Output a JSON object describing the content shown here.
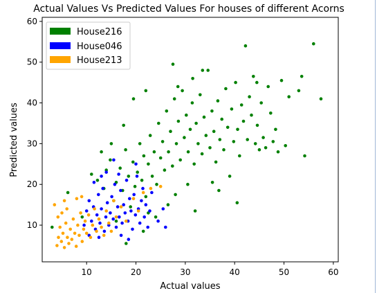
{
  "chart_data": {
    "type": "scatter",
    "title": "Actual Values Vs Predicted Values For houses of different Acorns",
    "xlabel": "Actual values",
    "ylabel": "Predicted values",
    "xlim": [
      1,
      61
    ],
    "ylim": [
      1,
      61
    ],
    "xticks": [
      10,
      20,
      30,
      40,
      50,
      60
    ],
    "yticks": [
      10,
      20,
      30,
      40,
      50,
      60
    ],
    "grid": false,
    "legend_position": "top-left",
    "series": [
      {
        "name": "House216",
        "color": "#008000",
        "points": [
          [
            3.0,
            9.5
          ],
          [
            6.2,
            18.0
          ],
          [
            9.1,
            12.0
          ],
          [
            11.0,
            22.5
          ],
          [
            12.2,
            21.0
          ],
          [
            13.5,
            19.0
          ],
          [
            14.0,
            23.5
          ],
          [
            14.8,
            26.0
          ],
          [
            15.5,
            16.0
          ],
          [
            16.0,
            20.5
          ],
          [
            16.8,
            24.0
          ],
          [
            17.3,
            18.5
          ],
          [
            17.9,
            28.5
          ],
          [
            18.5,
            22.0
          ],
          [
            18.9,
            14.5
          ],
          [
            19.4,
            25.5
          ],
          [
            19.8,
            19.5
          ],
          [
            20.3,
            23.0
          ],
          [
            20.8,
            30.0
          ],
          [
            21.2,
            21.0
          ],
          [
            21.6,
            27.0
          ],
          [
            22.0,
            17.0
          ],
          [
            22.5,
            25.0
          ],
          [
            22.9,
            32.0
          ],
          [
            23.3,
            22.0
          ],
          [
            23.7,
            28.0
          ],
          [
            24.2,
            20.0
          ],
          [
            24.6,
            35.0
          ],
          [
            25.0,
            26.5
          ],
          [
            25.4,
            30.5
          ],
          [
            25.8,
            23.5
          ],
          [
            26.2,
            38.0
          ],
          [
            26.6,
            28.0
          ],
          [
            27.0,
            33.0
          ],
          [
            27.4,
            24.5
          ],
          [
            27.8,
            41.0
          ],
          [
            28.2,
            30.0
          ],
          [
            28.6,
            35.5
          ],
          [
            29.0,
            26.0
          ],
          [
            29.4,
            43.0
          ],
          [
            29.8,
            31.5
          ],
          [
            30.2,
            37.0
          ],
          [
            30.6,
            28.0
          ],
          [
            31.0,
            33.5
          ],
          [
            31.4,
            40.0
          ],
          [
            31.8,
            25.0
          ],
          [
            32.2,
            35.0
          ],
          [
            32.6,
            30.0
          ],
          [
            33.0,
            42.0
          ],
          [
            33.4,
            27.5
          ],
          [
            33.8,
            36.5
          ],
          [
            34.2,
            32.0
          ],
          [
            34.6,
            48.0
          ],
          [
            35.0,
            29.0
          ],
          [
            35.4,
            38.0
          ],
          [
            35.8,
            33.0
          ],
          [
            36.2,
            25.5
          ],
          [
            36.6,
            40.5
          ],
          [
            37.0,
            31.0
          ],
          [
            37.4,
            36.0
          ],
          [
            37.8,
            28.5
          ],
          [
            38.2,
            43.5
          ],
          [
            38.6,
            34.0
          ],
          [
            39.0,
            22.0
          ],
          [
            39.4,
            38.5
          ],
          [
            39.8,
            30.5
          ],
          [
            40.2,
            45.0
          ],
          [
            40.6,
            33.5
          ],
          [
            41.0,
            27.0
          ],
          [
            41.4,
            39.5
          ],
          [
            41.8,
            35.5
          ],
          [
            42.2,
            54.0
          ],
          [
            42.6,
            31.0
          ],
          [
            43.0,
            41.5
          ],
          [
            43.4,
            37.0
          ],
          [
            43.8,
            46.5
          ],
          [
            44.2,
            30.0
          ],
          [
            44.6,
            34.5
          ],
          [
            45.0,
            28.5
          ],
          [
            45.4,
            40.0
          ],
          [
            45.8,
            31.5
          ],
          [
            46.3,
            29.0
          ],
          [
            46.8,
            44.0
          ],
          [
            47.3,
            37.5
          ],
          [
            47.8,
            30.5
          ],
          [
            48.3,
            33.5
          ],
          [
            48.8,
            28.0
          ],
          [
            49.5,
            45.5
          ],
          [
            50.3,
            29.5
          ],
          [
            51.0,
            41.5
          ],
          [
            53.0,
            43.0
          ],
          [
            53.6,
            46.5
          ],
          [
            54.2,
            27.0
          ],
          [
            56.0,
            54.5
          ],
          [
            57.5,
            41.0
          ],
          [
            16.0,
            11.0
          ],
          [
            18.0,
            5.5
          ],
          [
            21.5,
            8.5
          ],
          [
            22.5,
            13.0
          ],
          [
            24.0,
            12.0
          ],
          [
            26.5,
            15.0
          ],
          [
            28.0,
            17.5
          ],
          [
            30.5,
            20.0
          ],
          [
            32.0,
            13.5
          ],
          [
            35.5,
            20.5
          ],
          [
            40.5,
            15.5
          ],
          [
            36.8,
            18.5
          ],
          [
            27.5,
            49.5
          ],
          [
            31.5,
            46.0
          ],
          [
            33.5,
            48.0
          ],
          [
            44.5,
            45.0
          ],
          [
            28.5,
            44.0
          ],
          [
            22.0,
            43.0
          ],
          [
            19.5,
            41.0
          ],
          [
            17.5,
            34.5
          ],
          [
            15.0,
            30.0
          ],
          [
            13.0,
            28.0
          ]
        ]
      },
      {
        "name": "House046",
        "color": "#0000ff",
        "points": [
          [
            9.5,
            10.0
          ],
          [
            10.0,
            13.5
          ],
          [
            10.5,
            16.0
          ],
          [
            11.0,
            11.0
          ],
          [
            11.4,
            14.5
          ],
          [
            11.8,
            9.0
          ],
          [
            12.1,
            12.5
          ],
          [
            12.4,
            17.5
          ],
          [
            12.7,
            10.5
          ],
          [
            13.0,
            14.0
          ],
          [
            13.3,
            19.0
          ],
          [
            13.6,
            8.5
          ],
          [
            13.9,
            12.0
          ],
          [
            14.2,
            15.5
          ],
          [
            14.5,
            10.0
          ],
          [
            14.8,
            13.0
          ],
          [
            15.1,
            17.0
          ],
          [
            15.4,
            11.5
          ],
          [
            15.7,
            20.0
          ],
          [
            16.0,
            9.5
          ],
          [
            16.3,
            14.5
          ],
          [
            16.6,
            12.0
          ],
          [
            16.9,
            18.5
          ],
          [
            17.2,
            10.5
          ],
          [
            17.5,
            15.0
          ],
          [
            17.8,
            13.0
          ],
          [
            18.1,
            21.0
          ],
          [
            18.4,
            11.0
          ],
          [
            18.7,
            16.5
          ],
          [
            19.0,
            13.5
          ],
          [
            19.3,
            9.0
          ],
          [
            19.6,
            17.5
          ],
          [
            19.9,
            12.5
          ],
          [
            20.2,
            22.0
          ],
          [
            20.5,
            14.0
          ],
          [
            20.8,
            10.5
          ],
          [
            21.1,
            16.0
          ],
          [
            21.4,
            19.0
          ],
          [
            21.7,
            12.0
          ],
          [
            22.0,
            15.0
          ],
          [
            22.4,
            9.5
          ],
          [
            22.8,
            13.5
          ],
          [
            23.2,
            18.0
          ],
          [
            14.0,
            23.0
          ],
          [
            15.5,
            26.0
          ],
          [
            16.5,
            22.5
          ],
          [
            20.0,
            25.0
          ],
          [
            11.5,
            20.5
          ],
          [
            10.5,
            7.5
          ],
          [
            12.5,
            7.0
          ],
          [
            17.0,
            7.5
          ],
          [
            18.5,
            6.5
          ],
          [
            24.5,
            11.0
          ],
          [
            25.5,
            14.0
          ],
          [
            26.0,
            9.5
          ],
          [
            13.0,
            22.0
          ]
        ]
      },
      {
        "name": "House213",
        "color": "#ffa500",
        "points": [
          [
            4.0,
            5.0
          ],
          [
            4.3,
            7.0
          ],
          [
            4.6,
            9.5
          ],
          [
            4.9,
            6.0
          ],
          [
            5.2,
            8.0
          ],
          [
            5.5,
            4.5
          ],
          [
            5.8,
            10.5
          ],
          [
            6.1,
            7.0
          ],
          [
            6.4,
            5.5
          ],
          [
            6.7,
            9.0
          ],
          [
            7.0,
            6.5
          ],
          [
            7.3,
            11.5
          ],
          [
            7.6,
            8.0
          ],
          [
            7.9,
            4.8
          ],
          [
            8.2,
            10.0
          ],
          [
            8.5,
            7.5
          ],
          [
            8.8,
            13.0
          ],
          [
            9.1,
            6.0
          ],
          [
            9.4,
            9.0
          ],
          [
            9.7,
            11.0
          ],
          [
            10.0,
            8.0
          ],
          [
            10.4,
            12.5
          ],
          [
            10.8,
            7.0
          ],
          [
            11.2,
            10.0
          ],
          [
            11.6,
            14.0
          ],
          [
            12.0,
            8.5
          ],
          [
            12.5,
            11.5
          ],
          [
            13.0,
            9.5
          ],
          [
            13.5,
            7.5
          ],
          [
            14.0,
            13.5
          ],
          [
            14.5,
            10.5
          ],
          [
            15.0,
            8.5
          ],
          [
            15.5,
            16.0
          ],
          [
            16.0,
            12.0
          ],
          [
            17.0,
            14.5
          ],
          [
            18.0,
            11.0
          ],
          [
            19.5,
            16.5
          ],
          [
            20.5,
            13.5
          ],
          [
            21.5,
            18.0
          ],
          [
            23.0,
            19.0
          ],
          [
            25.0,
            19.5
          ],
          [
            5.0,
            13.0
          ],
          [
            4.2,
            12.0
          ],
          [
            3.5,
            15.0
          ],
          [
            5.5,
            16.0
          ],
          [
            6.0,
            14.0
          ],
          [
            8.0,
            16.5
          ],
          [
            9.0,
            17.0
          ]
        ]
      }
    ]
  }
}
